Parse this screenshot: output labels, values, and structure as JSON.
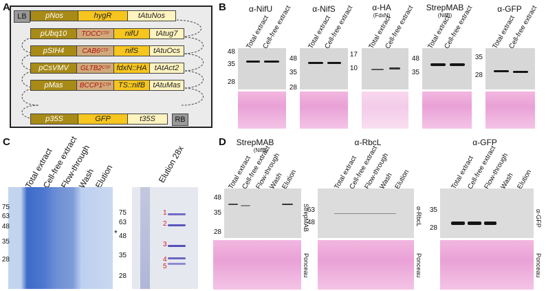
{
  "panels": {
    "a": "A",
    "b": "B",
    "c": "C",
    "d": "D"
  },
  "a": {
    "lb": "LB",
    "rb": "RB",
    "rows": [
      {
        "promoter": "pNos",
        "target": "",
        "gene": "hygR",
        "terminator": "tAtuNos"
      },
      {
        "promoter": "pUbq10",
        "target": "TOCC",
        "target_sub": "CTP",
        "gene": "nifU",
        "terminator": "tAtug7"
      },
      {
        "promoter": "pSIH4",
        "target": "CAB6",
        "target_sub": "CTP",
        "gene": "nifS",
        "terminator": "tAtuOcs"
      },
      {
        "promoter": "pCsVMV",
        "target": "GLTB2",
        "target_sub": "CTP",
        "gene": "fdxN::HA",
        "terminator": "tAtAct2"
      },
      {
        "promoter": "pMas",
        "target": "BCCP1",
        "target_sub": "CTP",
        "gene": "TS::nifB",
        "terminator": "tAtuMas"
      },
      {
        "promoter": "p35S",
        "target": "",
        "gene": "GFP",
        "terminator": "t35S"
      }
    ]
  },
  "b": {
    "lanes": [
      "Total extract",
      "Cell-free extract"
    ],
    "blots": [
      {
        "title": "α-NifU",
        "subtitle": "",
        "mw": [
          "48",
          "35",
          "28"
        ]
      },
      {
        "title": "α-NifS",
        "subtitle": "",
        "mw": [
          "48",
          "35",
          "28"
        ]
      },
      {
        "title": "α-HA",
        "subtitle": "(FdxN)",
        "mw": [
          "17",
          "10"
        ]
      },
      {
        "title": "StrepMAB",
        "subtitle": "(NifB)",
        "mw": [
          "48",
          "35"
        ]
      },
      {
        "title": "α-GFP",
        "subtitle": "",
        "mw": [
          "35",
          "28"
        ]
      }
    ]
  },
  "c": {
    "lanes": [
      "Total extract",
      "Cell-free extract",
      "Flow-through",
      "Wash",
      "Elution"
    ],
    "mw": [
      "75",
      "63",
      "48",
      "35",
      "28"
    ],
    "star": "*",
    "right_title": "Elution 28x",
    "right_mw": [
      "75",
      "63",
      "48",
      "35",
      "28"
    ],
    "band_labels": [
      "1",
      "2",
      "3",
      "4",
      "5"
    ]
  },
  "d": {
    "lanes": [
      "Total extract",
      "Cell-free extract",
      "Flow-through",
      "Wash",
      "Elution"
    ],
    "blots": [
      {
        "title": "StrepMAB",
        "subtitle": "(NifB)",
        "mw": [
          "48",
          "35",
          "28"
        ],
        "side": "StrepMAB"
      },
      {
        "title": "α-RbcL",
        "subtitle": "",
        "mw": [
          "63",
          "48"
        ],
        "side": "α-RbcL"
      },
      {
        "title": "α-GFP",
        "subtitle": "",
        "mw": [
          "35",
          "28"
        ],
        "side": "α-GFP"
      }
    ],
    "ponceau": "Ponceau"
  }
}
